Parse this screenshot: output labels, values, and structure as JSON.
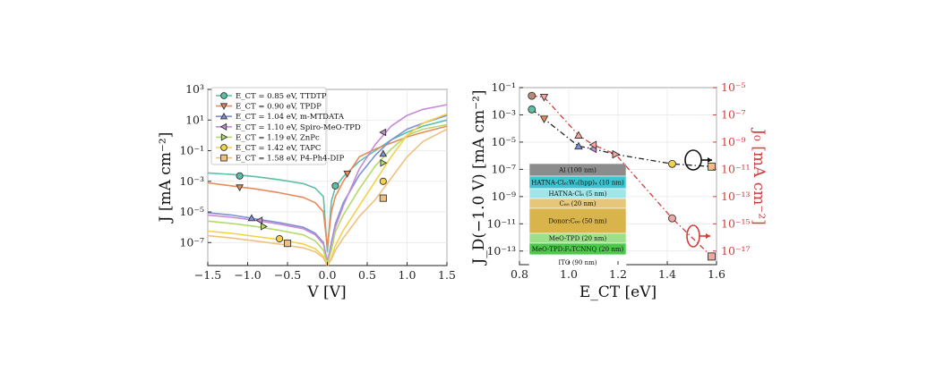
{
  "chart_data": [
    {
      "type": "line",
      "xlabel": "V [V]",
      "ylabel": "J [mA cm⁻²]",
      "x_ticks": [
        "−1.5",
        "−1.0",
        "−0.5",
        "0.0",
        "0.5",
        "1.0",
        "1.5"
      ],
      "y_ticks": [
        "10⁻⁷",
        "10⁻⁵",
        "10⁻³",
        "10⁻¹",
        "10¹",
        "10³"
      ],
      "xlim": [
        -1.5,
        1.5
      ],
      "ylim_log10": [
        -8.5,
        3
      ],
      "y_scale": "log",
      "grid": true,
      "legend_position": "top-left",
      "series": [
        {
          "name": "E_CT = 0.85 eV, TTDTP",
          "color": "#5dbfa8",
          "marker": "circle",
          "x": [
            -1.5,
            -1.2,
            -0.9,
            -0.6,
            -0.3,
            -0.15,
            -0.05,
            0,
            0.05,
            0.1,
            0.2,
            0.4,
            0.6,
            0.8,
            1.0,
            1.2,
            1.5
          ],
          "y_log10": [
            -2.45,
            -2.55,
            -2.7,
            -2.9,
            -3.15,
            -3.45,
            -4.0,
            -7.6,
            -4.3,
            -3.4,
            -2.7,
            -1.7,
            -1.0,
            -0.3,
            0.2,
            0.6,
            1.0
          ],
          "marker_at": [
            [
              -1.1,
              -2.65
            ],
            [
              0.1,
              -3.3
            ]
          ]
        },
        {
          "name": "E_CT = 0.90 eV, TPDP",
          "color": "#e88a5a",
          "marker": "triangle-down",
          "x": [
            -1.5,
            -1.2,
            -0.9,
            -0.6,
            -0.3,
            -0.15,
            -0.05,
            0,
            0.05,
            0.1,
            0.2,
            0.4,
            0.6,
            0.8,
            1.0,
            1.2,
            1.5
          ],
          "y_log10": [
            -3.1,
            -3.3,
            -3.5,
            -3.75,
            -4.05,
            -4.4,
            -5.0,
            -7.3,
            -5.0,
            -4.0,
            -3.0,
            -1.4,
            -0.9,
            -0.5,
            -0.1,
            0.2,
            0.6
          ],
          "marker_at": [
            [
              -1.1,
              -3.4
            ],
            [
              0.25,
              -2.5
            ]
          ]
        },
        {
          "name": "E_CT = 1.04 eV, m-MTDATA",
          "color": "#7c91d6",
          "marker": "triangle-up",
          "x": [
            -1.5,
            -1.2,
            -0.9,
            -0.6,
            -0.3,
            -0.15,
            -0.05,
            0,
            0.05,
            0.1,
            0.2,
            0.4,
            0.6,
            0.8,
            1.0,
            1.2,
            1.5
          ],
          "y_log10": [
            -5.05,
            -5.2,
            -5.45,
            -5.7,
            -6.0,
            -6.4,
            -7.0,
            -8.3,
            -7.0,
            -5.8,
            -4.4,
            -2.6,
            -1.3,
            -0.3,
            0.4,
            0.8,
            1.3
          ],
          "marker_at": [
            [
              -0.95,
              -5.4
            ],
            [
              0.7,
              -1.2
            ]
          ]
        },
        {
          "name": "E_CT = 1.10 eV, Spiro-MeO-TPD",
          "color": "#c58bd6",
          "marker": "triangle-left",
          "x": [
            -1.5,
            -1.2,
            -0.9,
            -0.6,
            -0.3,
            -0.15,
            -0.05,
            0,
            0.05,
            0.1,
            0.2,
            0.4,
            0.6,
            0.8,
            1.0,
            1.2,
            1.5
          ],
          "y_log10": [
            -5.2,
            -5.35,
            -5.55,
            -5.8,
            -6.1,
            -6.5,
            -7.1,
            -8.2,
            -7.2,
            -6.0,
            -4.6,
            -2.2,
            -0.6,
            0.6,
            1.3,
            1.7,
            2.0
          ],
          "marker_at": [
            [
              -0.85,
              -5.55
            ],
            [
              0.7,
              0.2
            ]
          ]
        },
        {
          "name": "E_CT = 1.19 eV, ZnPc",
          "color": "#b6d96a",
          "marker": "triangle-right",
          "x": [
            -1.5,
            -1.2,
            -0.9,
            -0.6,
            -0.3,
            -0.15,
            -0.05,
            0,
            0.05,
            0.1,
            0.2,
            0.4,
            0.6,
            0.8,
            1.0,
            1.2,
            1.5
          ],
          "y_log10": [
            -5.6,
            -5.75,
            -5.95,
            -6.2,
            -6.5,
            -6.9,
            -7.5,
            -8.4,
            -7.5,
            -6.3,
            -5.2,
            -3.5,
            -2.0,
            -0.9,
            0.0,
            0.4,
            0.7
          ],
          "marker_at": [
            [
              -0.8,
              -5.95
            ],
            [
              0.7,
              -1.8
            ]
          ]
        },
        {
          "name": "E_CT = 1.42 eV, TAPC",
          "color": "#f2d24a",
          "marker": "circle",
          "x": [
            -1.5,
            -1.2,
            -0.9,
            -0.6,
            -0.3,
            -0.15,
            -0.05,
            0,
            0.05,
            0.1,
            0.2,
            0.4,
            0.6,
            0.8,
            1.0,
            1.2,
            1.5
          ],
          "y_log10": [
            -6.25,
            -6.4,
            -6.6,
            -6.8,
            -7.1,
            -7.4,
            -7.9,
            -8.5,
            -8.0,
            -7.2,
            -6.2,
            -4.6,
            -3.0,
            -1.4,
            0.0,
            0.8,
            1.4
          ],
          "marker_at": [
            [
              -0.6,
              -6.75
            ],
            [
              0.7,
              -3.0
            ]
          ]
        },
        {
          "name": "E_CT = 1.58 eV, P4-Ph4-DIP",
          "color": "#f0c080",
          "marker": "square",
          "x": [
            -1.5,
            -1.2,
            -0.9,
            -0.6,
            -0.3,
            -0.15,
            -0.05,
            0,
            0.05,
            0.1,
            0.2,
            0.4,
            0.6,
            0.8,
            1.0,
            1.2,
            1.5
          ],
          "y_log10": [
            -6.55,
            -6.7,
            -6.9,
            -7.1,
            -7.35,
            -7.6,
            -8.0,
            -8.5,
            -8.1,
            -7.5,
            -6.7,
            -5.3,
            -4.2,
            -2.8,
            -1.4,
            -0.4,
            0.4
          ],
          "marker_at": [
            [
              -0.5,
              -7.05
            ],
            [
              0.7,
              -4.1
            ]
          ]
        }
      ]
    },
    {
      "type": "scatter",
      "xlabel": "E_CT [eV]",
      "ylabel": "J_D(−1.0 V) [mA cm⁻²]",
      "ylabel_right": "J₀ [mA cm⁻²]",
      "x_ticks": [
        "0.8",
        "1.0",
        "1.2",
        "1.4",
        "1.6"
      ],
      "y_ticks": [
        "10⁻¹³",
        "10⁻¹¹",
        "10⁻⁹",
        "10⁻⁷",
        "10⁻⁵",
        "10⁻³",
        "10⁻¹"
      ],
      "y_ticks_right": [
        "10⁻¹⁷",
        "10⁻¹⁵",
        "10⁻¹³",
        "10⁻¹¹",
        "10⁻⁹",
        "10⁻⁷",
        "10⁻⁵"
      ],
      "xlim": [
        0.8,
        1.6
      ],
      "ylim_log10": [
        -14,
        -1
      ],
      "ylim_right_log10": [
        -18,
        -5
      ],
      "y_scale": "log",
      "grid": true,
      "series": [
        {
          "name": "J_D(−1.0 V)",
          "color": "#222222",
          "axis": "left",
          "points": [
            {
              "x": 0.85,
              "y_log10": -2.6,
              "color": "#5dbfa8",
              "marker": "circle"
            },
            {
              "x": 0.9,
              "y_log10": -3.3,
              "color": "#e88a5a",
              "marker": "triangle-down"
            },
            {
              "x": 1.04,
              "y_log10": -5.3,
              "color": "#7c91d6",
              "marker": "triangle-up"
            },
            {
              "x": 1.1,
              "y_log10": -5.5,
              "color": "#c58bd6",
              "marker": "triangle-left"
            },
            {
              "x": 1.19,
              "y_log10": -5.9,
              "color": "#b6d96a",
              "marker": "triangle-right"
            },
            {
              "x": 1.42,
              "y_log10": -6.6,
              "color": "#f2d24a",
              "marker": "circle"
            },
            {
              "x": 1.58,
              "y_log10": -6.8,
              "color": "#f0c080",
              "marker": "square"
            }
          ]
        },
        {
          "name": "J₀",
          "color": "#cf3d3d",
          "axis": "right",
          "points": [
            {
              "x": 0.85,
              "y_log10": -5.6,
              "color": "#b58c7a",
              "marker": "circle"
            },
            {
              "x": 0.9,
              "y_log10": -5.7,
              "color": "#f2a7a0",
              "marker": "triangle-down"
            },
            {
              "x": 1.04,
              "y_log10": -8.5,
              "color": "#f2a7a0",
              "marker": "triangle-up"
            },
            {
              "x": 1.1,
              "y_log10": -9.2,
              "color": "#f2a7a0",
              "marker": "triangle-left"
            },
            {
              "x": 1.19,
              "y_log10": -9.9,
              "color": "#f2a7a0",
              "marker": "triangle-right"
            },
            {
              "x": 1.42,
              "y_log10": -14.6,
              "color": "#f2a7a0",
              "marker": "circle"
            },
            {
              "x": 1.58,
              "y_log10": -17.4,
              "color": "#f2a7a0",
              "marker": "square"
            }
          ]
        }
      ],
      "device_stack": [
        {
          "label": "Al (100 nm)",
          "color": "#8c8c8c"
        },
        {
          "label": "HATNA-Cl₆:W₂(hpp)₄ (10 nm)",
          "color": "#3fc4cf"
        },
        {
          "label": "HATNA-Cl₆ (5 nm)",
          "color": "#9fe6e8"
        },
        {
          "label": "C₆₀ (20 nm)",
          "color": "#e6c77a"
        },
        {
          "label": "Donor:C₆₀ (50 nm)",
          "color": "#d9b44a"
        },
        {
          "label": "MeO-TPD (20 nm)",
          "color": "#9ee08a"
        },
        {
          "label": "MeO-TPD:F₆TCNNQ (20 nm)",
          "color": "#4cc94c"
        },
        {
          "label": "ITO (90 nm)",
          "color": "#ffffff"
        }
      ]
    }
  ]
}
